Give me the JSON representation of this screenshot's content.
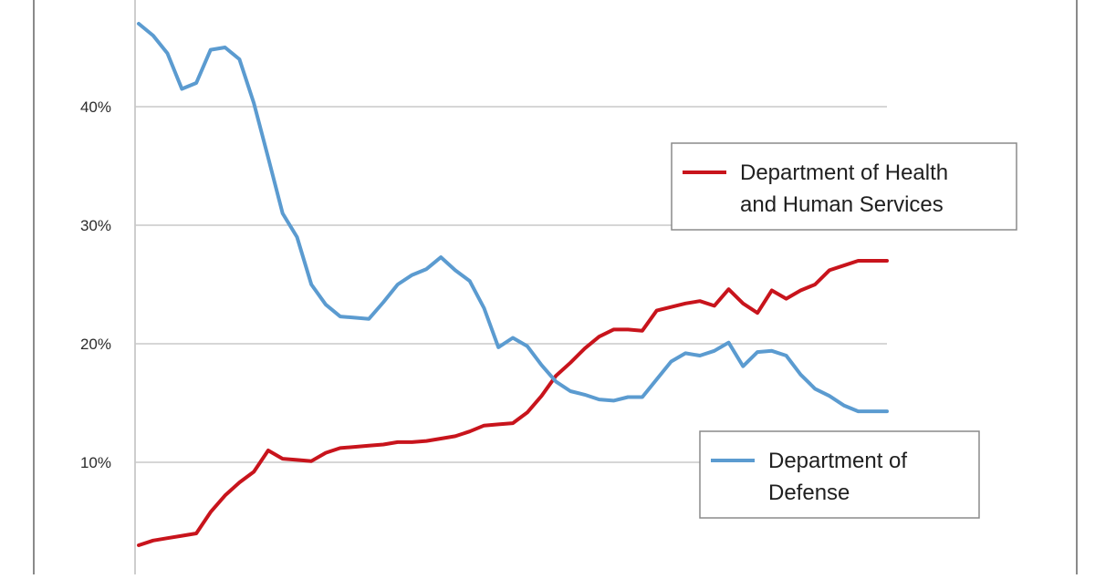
{
  "colors": {
    "background": "#ffffff",
    "frame": "#8a8a8a",
    "grid": "#c8c8c8",
    "axis_text": "#2b2b2b",
    "legend_border": "#8a8a8a"
  },
  "chart_data": {
    "type": "line",
    "title": "",
    "xlabel": "",
    "ylabel": "",
    "ylim": [
      0,
      50
    ],
    "y_ticks": [
      {
        "value": 10,
        "label": "10%"
      },
      {
        "value": 20,
        "label": "20%"
      },
      {
        "value": 30,
        "label": "30%"
      },
      {
        "value": 40,
        "label": "40%"
      }
    ],
    "grid": true,
    "x": [
      0,
      1,
      2,
      3,
      4,
      5,
      6,
      7,
      8,
      9,
      10,
      11,
      12,
      13,
      14,
      15,
      16,
      17,
      18,
      19,
      20,
      21,
      22,
      23,
      24,
      25,
      26,
      27,
      28,
      29,
      30,
      31,
      32,
      33,
      34,
      35,
      36,
      37,
      38,
      39,
      40,
      41,
      42,
      43,
      44,
      45,
      46,
      47,
      48,
      49,
      50,
      51,
      52
    ],
    "series": [
      {
        "name": "Department of Health and Human Services",
        "color": "#c8141c",
        "legend_lines": [
          "Department of Health",
          "and Human Services"
        ],
        "legend_position": "upper-right",
        "values": [
          3.0,
          3.4,
          3.6,
          3.8,
          4.0,
          5.8,
          7.2,
          8.3,
          9.2,
          11.0,
          10.3,
          10.2,
          10.1,
          10.8,
          11.2,
          11.3,
          11.4,
          11.5,
          11.7,
          11.7,
          11.8,
          12.0,
          12.2,
          12.6,
          13.1,
          13.2,
          13.3,
          14.2,
          15.6,
          17.3,
          18.4,
          19.6,
          20.6,
          21.2,
          21.2,
          21.1,
          22.8,
          23.1,
          23.4,
          23.6,
          23.2,
          24.6,
          23.4,
          22.6,
          24.5,
          23.8,
          24.5,
          25.0,
          26.2,
          26.6,
          27.0,
          27.0,
          27.0
        ]
      },
      {
        "name": "Department of Defense",
        "color": "#5b9bd0",
        "legend_lines": [
          "Department of",
          "Defense"
        ],
        "legend_position": "lower-right",
        "values": [
          47.0,
          46.0,
          44.5,
          41.5,
          42.0,
          44.8,
          45.0,
          44.0,
          40.3,
          35.7,
          31.0,
          29.0,
          25.0,
          23.3,
          22.3,
          22.2,
          22.1,
          23.5,
          25.0,
          25.8,
          26.3,
          27.3,
          26.2,
          25.3,
          23.0,
          19.7,
          20.5,
          19.8,
          18.2,
          16.8,
          16.0,
          15.7,
          15.3,
          15.2,
          15.5,
          15.5,
          17.0,
          18.5,
          19.2,
          19.0,
          19.4,
          20.1,
          18.1,
          19.3,
          19.4,
          19.0,
          17.4,
          16.2,
          15.6,
          14.8,
          14.3,
          14.3,
          14.3
        ]
      }
    ]
  }
}
